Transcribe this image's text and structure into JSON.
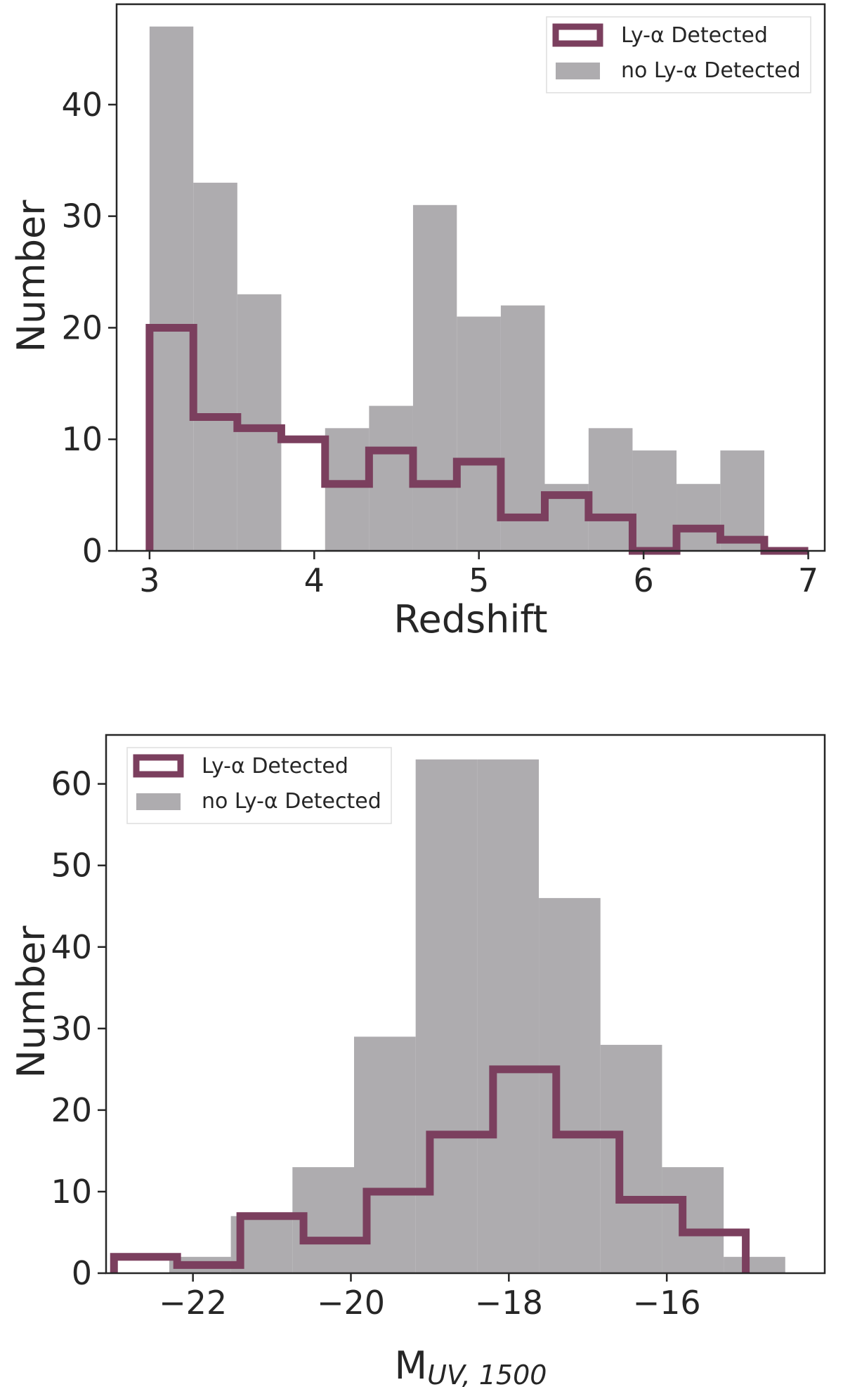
{
  "colors": {
    "detected": "#7b3f5e",
    "not_detected": "#aeacaf",
    "axis": "#262626"
  },
  "chart_data": [
    {
      "type": "histogram",
      "title": "",
      "xlabel": "Redshift",
      "ylabel": "Number",
      "xlim": [
        2.8,
        7.1
      ],
      "ylim": [
        0,
        49
      ],
      "xticks": [
        3,
        4,
        5,
        6,
        7
      ],
      "yticks": [
        0,
        10,
        20,
        30,
        40
      ],
      "legend_placement": "top-right",
      "bin_edges": [
        3.0,
        3.266,
        3.533,
        3.8,
        4.066,
        4.333,
        4.6,
        4.866,
        5.133,
        5.4,
        5.666,
        5.933,
        6.2,
        6.466,
        6.733,
        7.0
      ],
      "series": [
        {
          "name": "Ly-α Detected",
          "style": "step-outline",
          "values": [
            20,
            12,
            11,
            10,
            6,
            9,
            6,
            8,
            3,
            5,
            3,
            0,
            2,
            1,
            0
          ]
        },
        {
          "name": "no Ly-α Detected",
          "style": "filled",
          "values": [
            47,
            33,
            23,
            0,
            11,
            13,
            31,
            21,
            22,
            6,
            11,
            9,
            6,
            9,
            0
          ]
        }
      ]
    },
    {
      "type": "histogram",
      "title": "",
      "xlabel": "M",
      "xlabel_sub": "UV, 1500",
      "ylabel": "Number",
      "xlim": [
        -23.1,
        -14.0
      ],
      "ylim": [
        0,
        66
      ],
      "xticks": [
        -22,
        -20,
        -18,
        -16
      ],
      "xtick_labels": [
        "−22",
        "−20",
        "−18",
        "−16"
      ],
      "yticks": [
        0,
        10,
        20,
        30,
        40,
        50,
        60
      ],
      "legend_placement": "top-left",
      "series": [
        {
          "name": "Ly-α Detected",
          "style": "step-outline",
          "bin_edges": [
            -23.0,
            -22.2,
            -21.4,
            -20.6,
            -19.8,
            -19.0,
            -18.2,
            -17.4,
            -16.6,
            -15.8,
            -15.0
          ],
          "values": [
            2,
            1,
            7,
            4,
            10,
            17,
            25,
            17,
            9,
            5
          ]
        },
        {
          "name": "no Ly-α Detected",
          "style": "filled",
          "bin_edges": [
            -22.3,
            -21.52,
            -20.74,
            -19.96,
            -19.18,
            -18.4,
            -17.62,
            -16.84,
            -16.06,
            -15.28,
            -14.5
          ],
          "values": [
            2,
            7,
            13,
            29,
            63,
            63,
            46,
            28,
            13,
            2
          ]
        }
      ]
    }
  ]
}
